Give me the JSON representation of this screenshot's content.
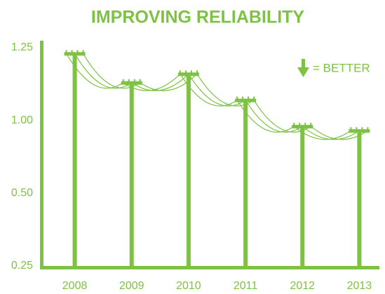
{
  "chart_data": {
    "type": "bar",
    "title": "IMPROVING RELIABILITY",
    "categories": [
      "2008",
      "2009",
      "2010",
      "2011",
      "2012",
      "2013"
    ],
    "values": [
      1.23,
      1.13,
      1.16,
      1.07,
      0.96,
      0.93
    ],
    "color": "#7dc242",
    "ylim": [
      0.25,
      1.25
    ],
    "yticks": [
      {
        "value": 0.25,
        "label": "0.25"
      },
      {
        "value": 0.5,
        "label": "0.50"
      },
      {
        "value": 1.0,
        "label": "1.00"
      },
      {
        "value": 1.25,
        "label": "1.25"
      }
    ],
    "legend_text": "= BETTER"
  }
}
